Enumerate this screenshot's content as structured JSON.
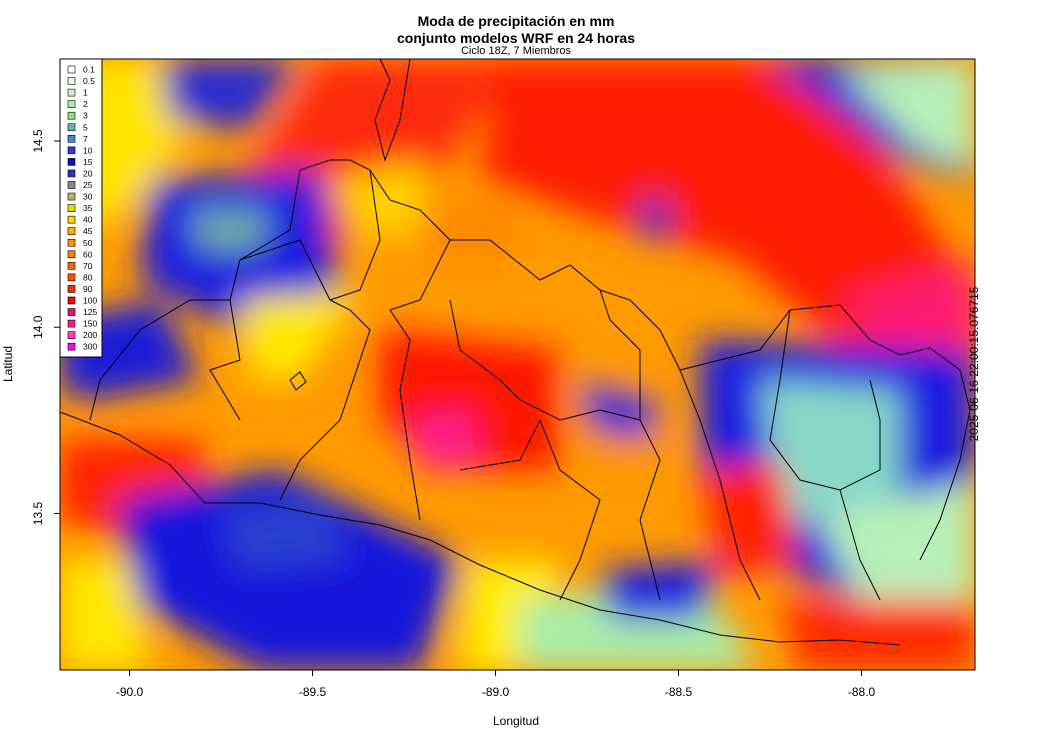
{
  "title": "Moda de precipitación en mm",
  "subtitle_line2": "conjunto modelos WRF en 24 horas",
  "subtitle": "Ciclo 18Z, 7 Miembros",
  "xlabel": "Longitud",
  "ylabel": "Latitud",
  "timestamp": "2025-06-16 22:00:15.076715",
  "x_ticks": [
    "-90.0",
    "-89.5",
    "-89.0",
    "-88.5",
    "-88.0"
  ],
  "y_ticks": [
    "13.5",
    "14.0",
    "14.5"
  ],
  "legend": [
    {
      "label": "0.1",
      "color": "#ffffff"
    },
    {
      "label": "0.5",
      "color": "#e8fbe8"
    },
    {
      "label": "1",
      "color": "#c8f5c8"
    },
    {
      "label": "2",
      "color": "#a8eea8"
    },
    {
      "label": "3",
      "color": "#88e288"
    },
    {
      "label": "5",
      "color": "#5fb8b0"
    },
    {
      "label": "7",
      "color": "#4a86c8"
    },
    {
      "label": "10",
      "color": "#2a3ee0"
    },
    {
      "label": "15",
      "color": "#0a0ad0"
    },
    {
      "label": "20",
      "color": "#3030b0"
    },
    {
      "label": "25",
      "color": "#8a8a8a"
    },
    {
      "label": "30",
      "color": "#b8b860"
    },
    {
      "label": "35",
      "color": "#e0e000"
    },
    {
      "label": "40",
      "color": "#ffd400"
    },
    {
      "label": "45",
      "color": "#ffb000"
    },
    {
      "label": "50",
      "color": "#ff9600"
    },
    {
      "label": "60",
      "color": "#ff8000"
    },
    {
      "label": "70",
      "color": "#ff6a00"
    },
    {
      "label": "80",
      "color": "#ff4a00"
    },
    {
      "label": "90",
      "color": "#ff2a00"
    },
    {
      "label": "100",
      "color": "#ff0000"
    },
    {
      "label": "125",
      "color": "#f0145a"
    },
    {
      "label": "150",
      "color": "#ff1e8c"
    },
    {
      "label": "200",
      "color": "#ff40c0"
    },
    {
      "label": "300",
      "color": "#ff00ff"
    }
  ],
  "chart_data": {
    "type": "heatmap",
    "title": "Moda de precipitación en mm",
    "xlabel": "Longitud",
    "ylabel": "Latitud",
    "xlim": [
      -90.19,
      -87.69
    ],
    "ylim": [
      13.08,
      14.72
    ],
    "x_ticks": [
      -90.0,
      -89.5,
      -89.0,
      -88.5,
      -88.0
    ],
    "y_ticks": [
      13.5,
      14.0,
      14.5
    ],
    "legend_position": "top-left",
    "colors": {
      "blue": "#1414e0",
      "red": "#ff1a00",
      "orange": "#ff8c00",
      "yellow": "#ffee00",
      "lightgreen": "#a8eea8",
      "magenta": "#ff1e8c"
    }
  }
}
